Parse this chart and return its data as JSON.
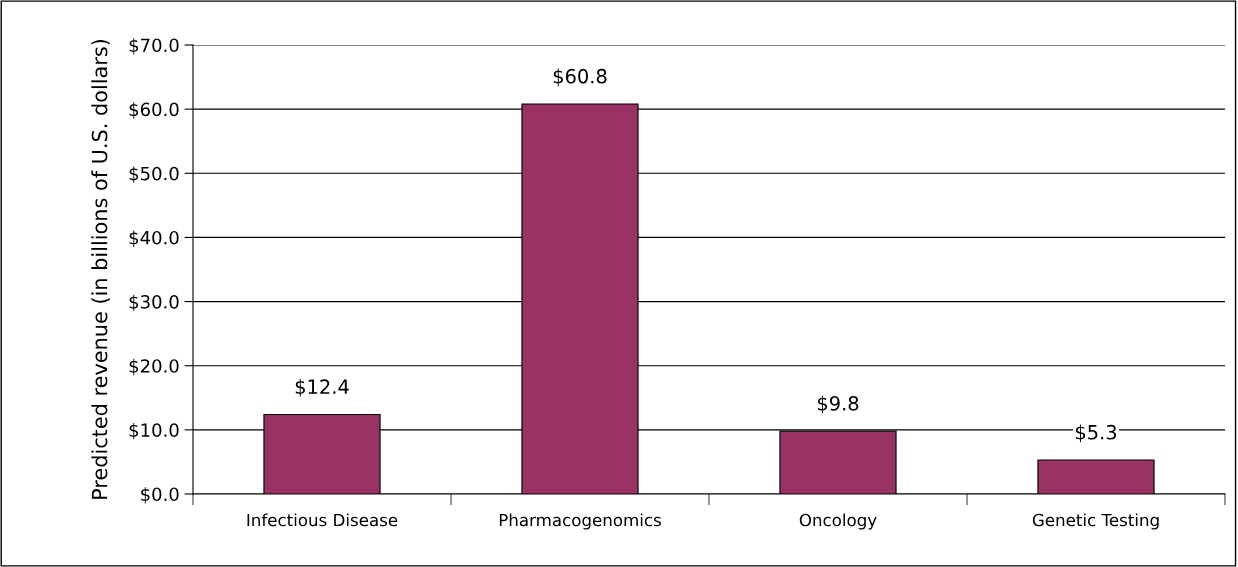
{
  "chart_data": {
    "type": "bar",
    "ylabel": "Predicted revenue (in billions of U.S. dollars)",
    "categories": [
      "Infectious Disease",
      "Pharmacogenomics",
      "Oncology",
      "Genetic Testing"
    ],
    "values": [
      12.4,
      60.8,
      9.8,
      5.3
    ],
    "value_labels": [
      "$12.4",
      "$60.8",
      "$9.8",
      "$5.3"
    ],
    "color": "#993366",
    "ylim": [
      0,
      70
    ],
    "yticks": [
      {
        "value": 0,
        "label": "$0.0"
      },
      {
        "value": 10,
        "label": "$10.0"
      },
      {
        "value": 20,
        "label": "$20.0"
      },
      {
        "value": 30,
        "label": "$30.0"
      },
      {
        "value": 40,
        "label": "$40.0"
      },
      {
        "value": 50,
        "label": "$50.0"
      },
      {
        "value": 60,
        "label": "$60.0"
      },
      {
        "value": 70,
        "label": "$70.0"
      }
    ],
    "grid": "y",
    "legend": false
  }
}
